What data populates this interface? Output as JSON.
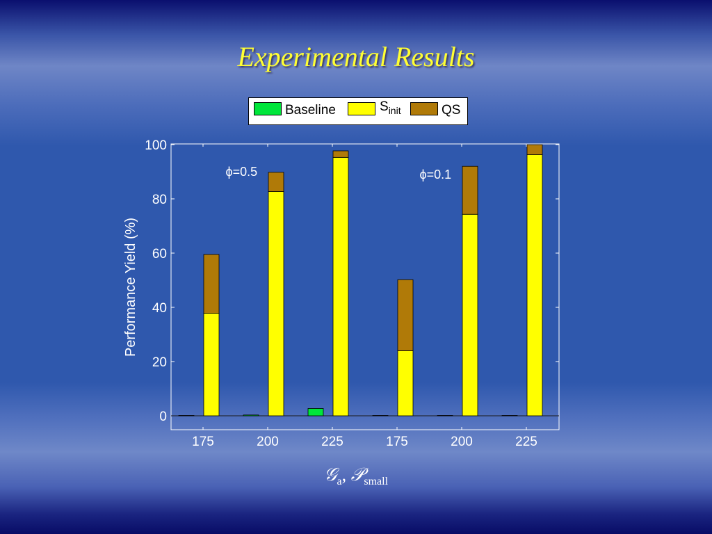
{
  "slide": {
    "title": "Experimental Results"
  },
  "legend": {
    "baseline": {
      "label": "Baseline",
      "color": "#00e63a"
    },
    "sinit": {
      "label_main": "S",
      "label_sub": "init",
      "color": "#ffff00"
    },
    "qs": {
      "label": "QS",
      "color": "#b07a08"
    }
  },
  "axis_title": {
    "x_main": "𝒢",
    "x_a": "a",
    "x_sep": ", ",
    "x_p": "𝒫",
    "x_sub": "small"
  },
  "chart_data": {
    "type": "bar",
    "stacked": true,
    "categories": [
      "175",
      "200",
      "225",
      "175",
      "200",
      "225"
    ],
    "ylabel": "Performance Yield (%)",
    "ylim": [
      0,
      100
    ],
    "yticks": [
      0,
      20,
      40,
      60,
      80,
      100
    ],
    "annotations": [
      {
        "text": "ϕ=0.5",
        "x": 0.35,
        "y": 90
      },
      {
        "text": "ϕ=0.1",
        "x": 3.35,
        "y": 89
      }
    ],
    "series": [
      {
        "name": "Baseline",
        "values": [
          0,
          0.3,
          2.7,
          0,
          0,
          0
        ]
      },
      {
        "name": "Sinit",
        "values": [
          37.8,
          82.7,
          95.3,
          24.0,
          74.3,
          96.3
        ]
      },
      {
        "name": "QS",
        "values": [
          21.7,
          7.1,
          2.4,
          26.2,
          17.7,
          3.7
        ]
      }
    ]
  }
}
